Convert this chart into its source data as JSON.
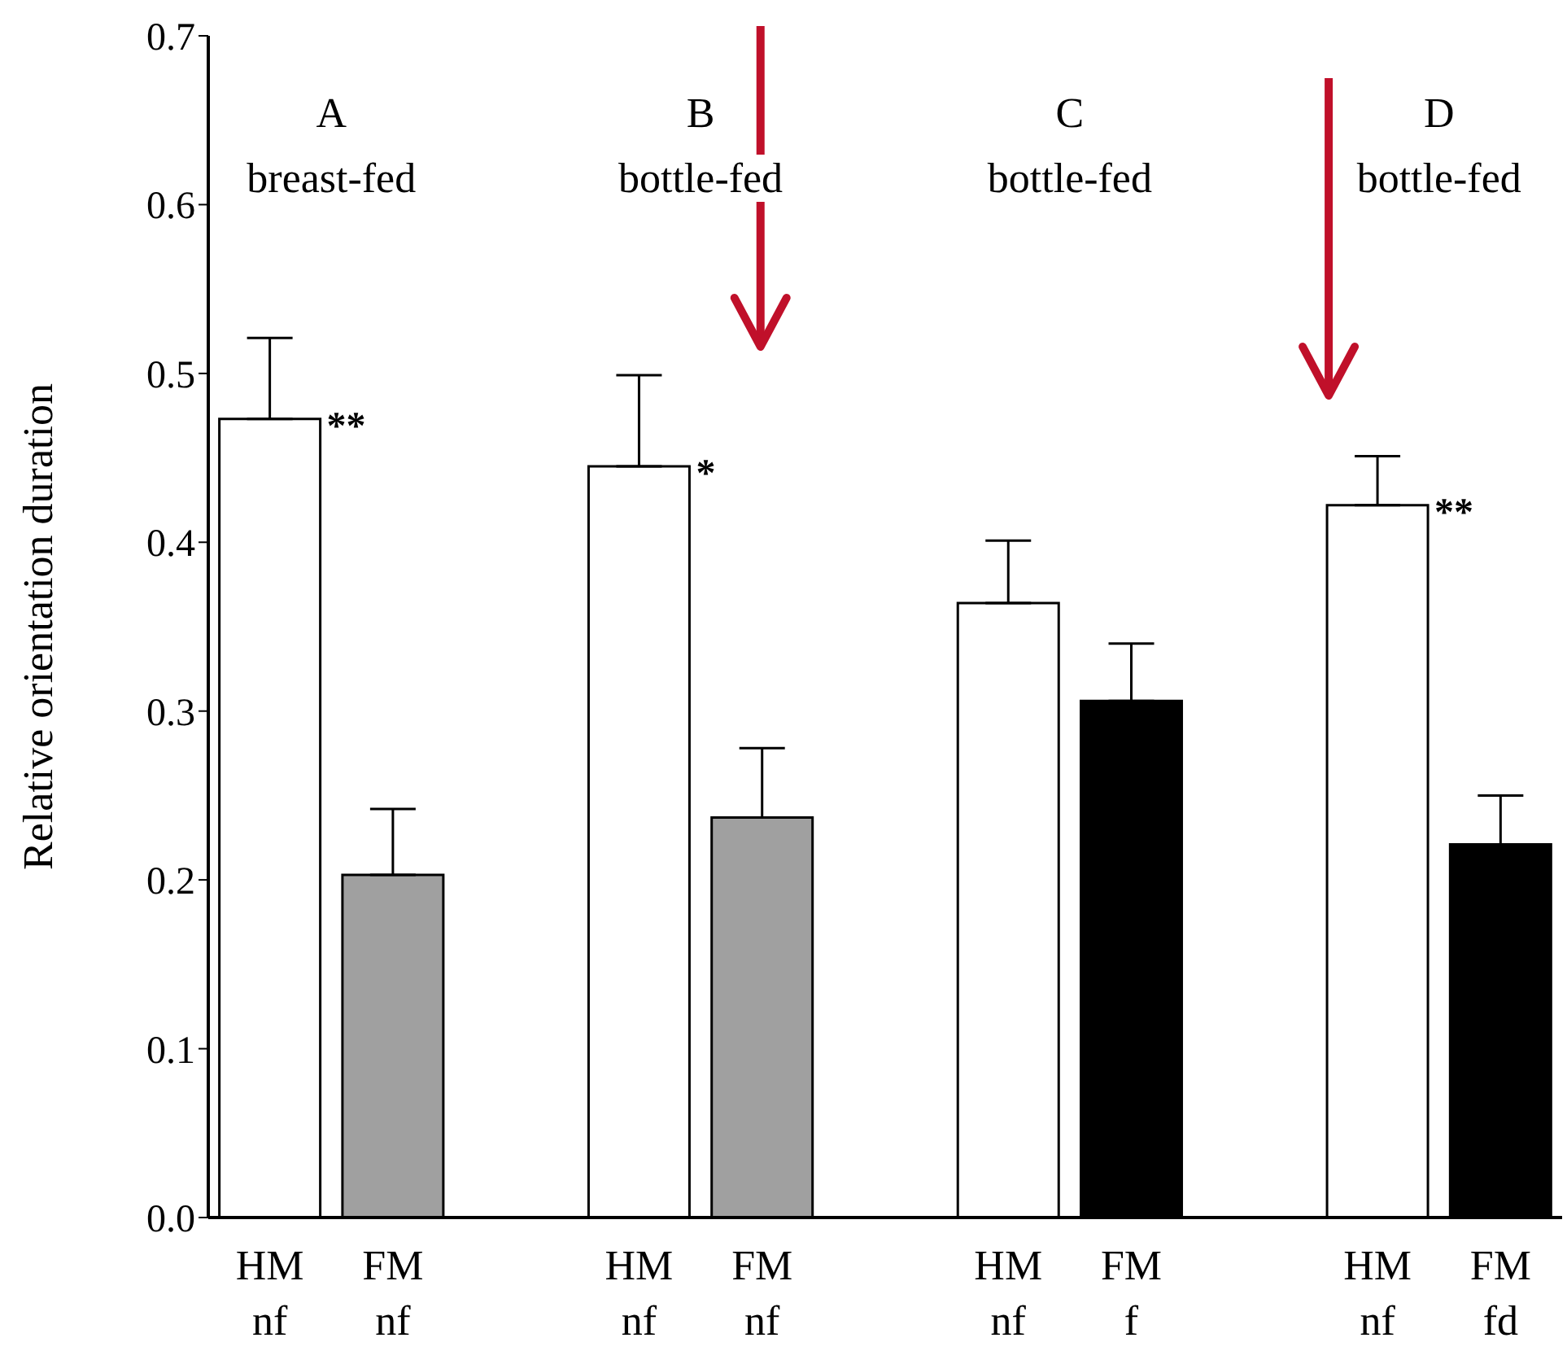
{
  "chart_data": {
    "type": "bar",
    "ylabel": "Relative orientation duration",
    "categories": [
      "HM\nnf",
      "FM\nnf",
      "HM\nnf",
      "FM\nnf",
      "HM\nnf",
      "FM\nf",
      "HM\nnf",
      "FM\nfd"
    ],
    "values": [
      0.473,
      0.203,
      0.445,
      0.237,
      0.364,
      0.306,
      0.422,
      0.221
    ],
    "colors": [
      "#ffffff",
      "#a0a0a0",
      "#ffffff",
      "#a0a0a0",
      "#ffffff",
      "#000000",
      "#ffffff",
      "#000000"
    ],
    "errors": [
      [
        0.473,
        0.521
      ],
      [
        0.203,
        0.242
      ],
      [
        0.445,
        0.499
      ],
      [
        0.237,
        0.278
      ],
      [
        0.364,
        0.401
      ],
      [
        0.306,
        0.34
      ],
      [
        0.422,
        0.451
      ],
      [
        0.221,
        0.25
      ]
    ],
    "value_labels": [
      "**",
      null,
      "*",
      null,
      null,
      null,
      "**",
      null
    ],
    "annotations": [
      "A\nbreast-fed",
      "B\nbottle-fed",
      "C\nbottle-fed",
      "D\nbottle-fed"
    ],
    "ylim": [
      0,
      0.7
    ],
    "yticks": [
      {
        "value": 0,
        "label": "0.0"
      },
      {
        "value": 0.1,
        "label": "0.1"
      },
      {
        "value": 0.2,
        "label": "0.2"
      },
      {
        "value": 0.3,
        "label": "0.3"
      },
      {
        "value": 0.4,
        "label": "0.4"
      },
      {
        "value": 0.5,
        "label": "0.5"
      },
      {
        "value": 0.6,
        "label": "0.6"
      },
      {
        "value": 0.7,
        "label": "0.7"
      }
    ],
    "grid": false,
    "legend": false
  }
}
